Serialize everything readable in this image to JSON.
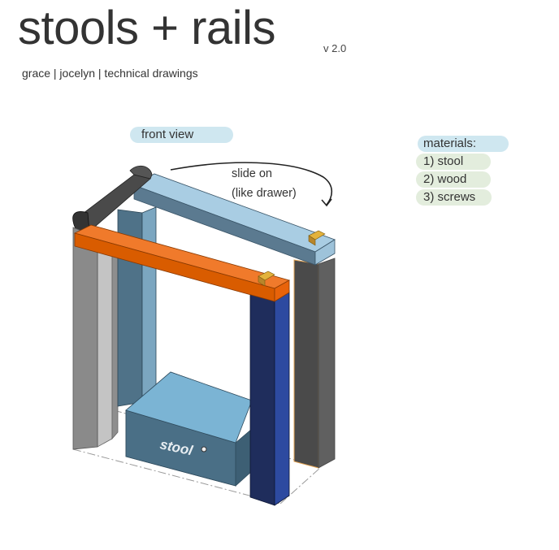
{
  "header": {
    "title": "stools + rails",
    "version": "v 2.0",
    "subtitle": "grace | jocelyn | technical drawings"
  },
  "annotations": {
    "view_label": "front view",
    "slide_note_line1": "slide on",
    "slide_note_line2": "(like drawer)",
    "stool_label": "stool"
  },
  "materials": {
    "heading": "materials:",
    "items": [
      "1) stool",
      "2) wood",
      "3) screws"
    ]
  },
  "colors": {
    "view_highlight": "#cfe7f0",
    "materials_heading_highlight": "#cfe7f0",
    "materials_item_highlight": "#e3eddd",
    "orange_rail": "#e8630a",
    "light_blue_rail": "#9ec3da",
    "dark_navy_post": "#1f2d5c",
    "stool_body": "#4a6f86",
    "stool_top": "#7bb4d4",
    "grey_post": "#8a8a8a",
    "dark_handle": "#3e3e3e"
  }
}
